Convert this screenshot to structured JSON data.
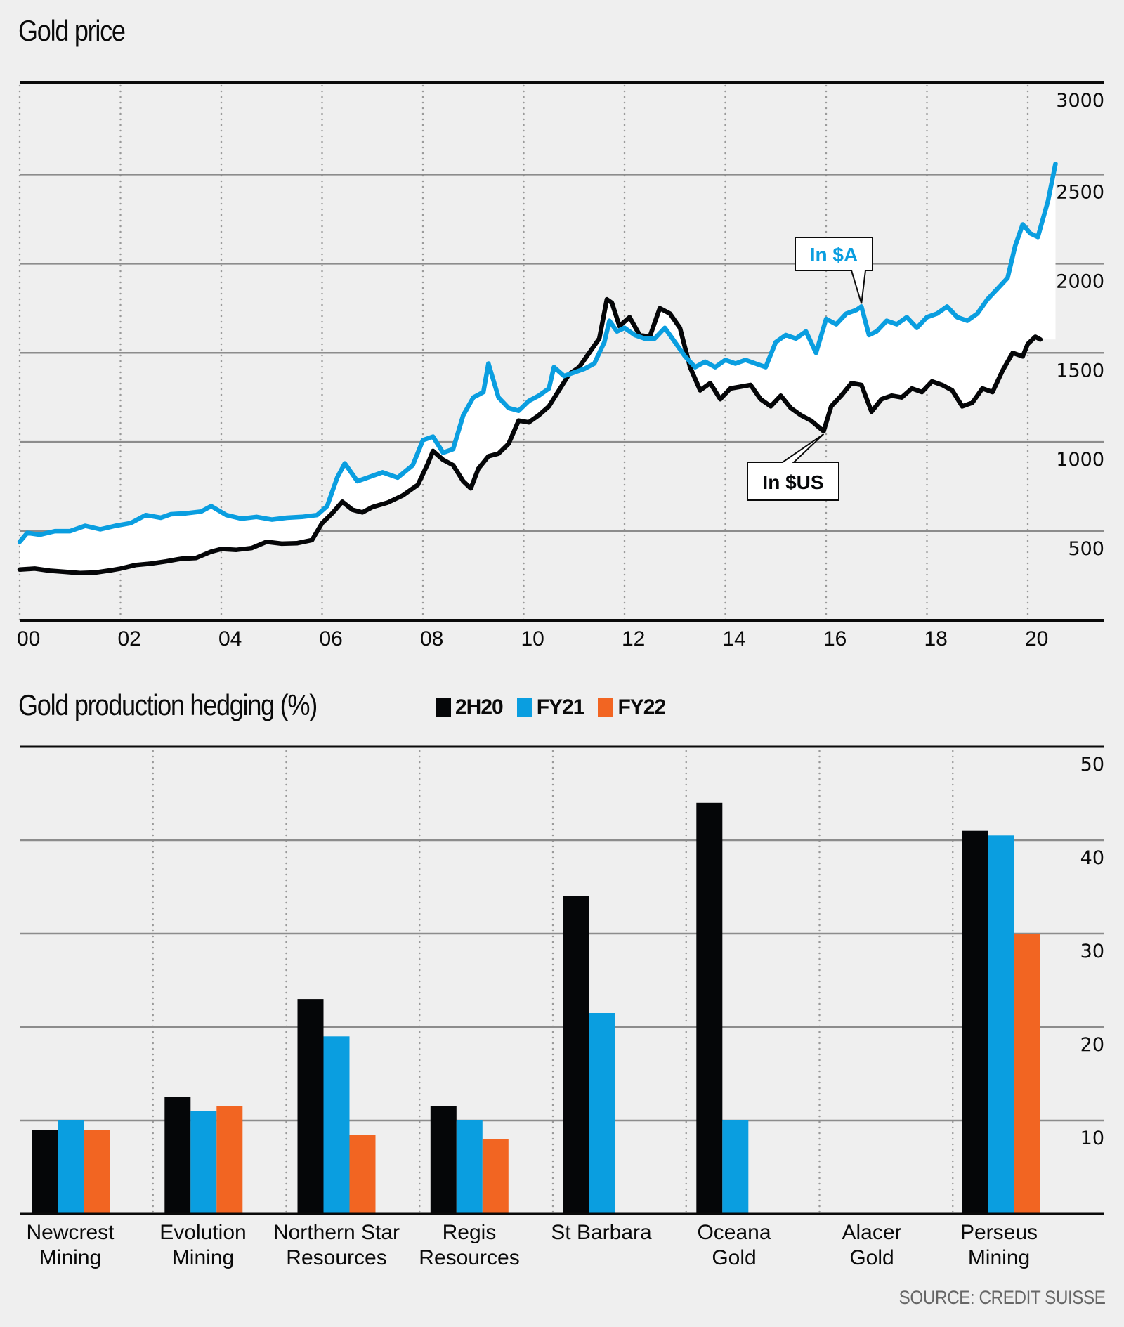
{
  "titles": {
    "gold_price": "Gold price",
    "hedging": "Gold production hedging (%)"
  },
  "colors": {
    "usd": "#050608",
    "aud": "#0a9ee0",
    "2H20": "#050608",
    "FY21": "#0a9ee0",
    "FY22": "#f26522",
    "background": "#efefef",
    "gridline": "#8c8c8c",
    "source": "#666666"
  },
  "legend": [
    {
      "key": "2H20",
      "label": "2H20"
    },
    {
      "key": "FY21",
      "label": "FY21"
    },
    {
      "key": "FY22",
      "label": "FY22"
    }
  ],
  "source": "SOURCE: CREDIT SUISSE",
  "chart_data": [
    {
      "type": "line",
      "title": "Gold price",
      "xlabel": "",
      "ylabel": "",
      "x_ticks": [
        "00",
        "02",
        "04",
        "06",
        "08",
        "10",
        "12",
        "14",
        "16",
        "18",
        "20"
      ],
      "xlim": [
        2000,
        2021
      ],
      "ylim": [
        0,
        3000
      ],
      "y_ticks": [
        500,
        1000,
        1500,
        2000,
        2500,
        3000
      ],
      "grid": {
        "horizontal": true,
        "vertical_dotted": true
      },
      "fill_between_series": true,
      "annotations": [
        {
          "text": "In $A",
          "series": "aud",
          "x": 2016.7
        },
        {
          "text": "In $US",
          "series": "usd",
          "x": 2015.95
        }
      ],
      "series": [
        {
          "name": "In $US",
          "key": "usd",
          "points": [
            [
              2000.0,
              285
            ],
            [
              2000.3,
              290
            ],
            [
              2000.6,
              278
            ],
            [
              2000.9,
              272
            ],
            [
              2001.2,
              265
            ],
            [
              2001.5,
              268
            ],
            [
              2001.8,
              280
            ],
            [
              2002.0,
              290
            ],
            [
              2002.3,
              310
            ],
            [
              2002.6,
              318
            ],
            [
              2002.9,
              330
            ],
            [
              2003.2,
              345
            ],
            [
              2003.5,
              350
            ],
            [
              2003.8,
              385
            ],
            [
              2004.0,
              400
            ],
            [
              2004.3,
              395
            ],
            [
              2004.6,
              405
            ],
            [
              2004.9,
              440
            ],
            [
              2005.2,
              430
            ],
            [
              2005.5,
              432
            ],
            [
              2005.8,
              450
            ],
            [
              2006.0,
              545
            ],
            [
              2006.2,
              600
            ],
            [
              2006.4,
              665
            ],
            [
              2006.6,
              620
            ],
            [
              2006.8,
              605
            ],
            [
              2007.0,
              635
            ],
            [
              2007.3,
              660
            ],
            [
              2007.6,
              700
            ],
            [
              2007.9,
              760
            ],
            [
              2008.1,
              880
            ],
            [
              2008.2,
              950
            ],
            [
              2008.4,
              900
            ],
            [
              2008.6,
              870
            ],
            [
              2008.8,
              780
            ],
            [
              2008.95,
              740
            ],
            [
              2009.1,
              850
            ],
            [
              2009.3,
              920
            ],
            [
              2009.5,
              935
            ],
            [
              2009.7,
              990
            ],
            [
              2009.9,
              1120
            ],
            [
              2010.1,
              1110
            ],
            [
              2010.3,
              1150
            ],
            [
              2010.5,
              1200
            ],
            [
              2010.7,
              1290
            ],
            [
              2010.9,
              1380
            ],
            [
              2011.1,
              1420
            ],
            [
              2011.3,
              1500
            ],
            [
              2011.5,
              1580
            ],
            [
              2011.65,
              1800
            ],
            [
              2011.75,
              1780
            ],
            [
              2011.9,
              1650
            ],
            [
              2012.1,
              1700
            ],
            [
              2012.3,
              1600
            ],
            [
              2012.5,
              1590
            ],
            [
              2012.7,
              1750
            ],
            [
              2012.9,
              1720
            ],
            [
              2013.1,
              1640
            ],
            [
              2013.3,
              1420
            ],
            [
              2013.5,
              1290
            ],
            [
              2013.7,
              1330
            ],
            [
              2013.9,
              1240
            ],
            [
              2014.1,
              1300
            ],
            [
              2014.3,
              1310
            ],
            [
              2014.5,
              1320
            ],
            [
              2014.7,
              1240
            ],
            [
              2014.9,
              1200
            ],
            [
              2015.1,
              1260
            ],
            [
              2015.3,
              1190
            ],
            [
              2015.5,
              1150
            ],
            [
              2015.7,
              1120
            ],
            [
              2015.95,
              1060
            ],
            [
              2016.1,
              1200
            ],
            [
              2016.3,
              1260
            ],
            [
              2016.5,
              1330
            ],
            [
              2016.7,
              1320
            ],
            [
              2016.9,
              1170
            ],
            [
              2017.1,
              1240
            ],
            [
              2017.3,
              1260
            ],
            [
              2017.5,
              1250
            ],
            [
              2017.7,
              1300
            ],
            [
              2017.9,
              1280
            ],
            [
              2018.1,
              1340
            ],
            [
              2018.3,
              1320
            ],
            [
              2018.5,
              1290
            ],
            [
              2018.7,
              1200
            ],
            [
              2018.9,
              1220
            ],
            [
              2019.1,
              1300
            ],
            [
              2019.3,
              1280
            ],
            [
              2019.5,
              1400
            ],
            [
              2019.7,
              1500
            ],
            [
              2019.9,
              1480
            ],
            [
              2020.0,
              1550
            ],
            [
              2020.15,
              1590
            ],
            [
              2020.25,
              1575
            ]
          ]
        },
        {
          "name": "In $A",
          "key": "aud",
          "points": [
            [
              2000.0,
              440
            ],
            [
              2000.15,
              490
            ],
            [
              2000.4,
              480
            ],
            [
              2000.7,
              500
            ],
            [
              2001.0,
              500
            ],
            [
              2001.3,
              530
            ],
            [
              2001.6,
              510
            ],
            [
              2001.9,
              530
            ],
            [
              2002.2,
              545
            ],
            [
              2002.5,
              590
            ],
            [
              2002.8,
              575
            ],
            [
              2003.0,
              595
            ],
            [
              2003.3,
              600
            ],
            [
              2003.6,
              610
            ],
            [
              2003.8,
              640
            ],
            [
              2004.1,
              590
            ],
            [
              2004.4,
              570
            ],
            [
              2004.7,
              580
            ],
            [
              2005.0,
              565
            ],
            [
              2005.3,
              575
            ],
            [
              2005.6,
              580
            ],
            [
              2005.9,
              590
            ],
            [
              2006.1,
              640
            ],
            [
              2006.3,
              800
            ],
            [
              2006.45,
              880
            ],
            [
              2006.7,
              780
            ],
            [
              2006.9,
              800
            ],
            [
              2007.2,
              830
            ],
            [
              2007.5,
              800
            ],
            [
              2007.8,
              870
            ],
            [
              2008.0,
              1010
            ],
            [
              2008.2,
              1030
            ],
            [
              2008.4,
              940
            ],
            [
              2008.6,
              960
            ],
            [
              2008.8,
              1150
            ],
            [
              2009.0,
              1250
            ],
            [
              2009.2,
              1280
            ],
            [
              2009.3,
              1440
            ],
            [
              2009.5,
              1250
            ],
            [
              2009.7,
              1190
            ],
            [
              2009.9,
              1175
            ],
            [
              2010.1,
              1230
            ],
            [
              2010.3,
              1260
            ],
            [
              2010.5,
              1300
            ],
            [
              2010.6,
              1420
            ],
            [
              2010.8,
              1370
            ],
            [
              2011.0,
              1390
            ],
            [
              2011.2,
              1410
            ],
            [
              2011.4,
              1440
            ],
            [
              2011.6,
              1560
            ],
            [
              2011.7,
              1680
            ],
            [
              2011.85,
              1620
            ],
            [
              2012.0,
              1640
            ],
            [
              2012.2,
              1600
            ],
            [
              2012.4,
              1580
            ],
            [
              2012.6,
              1580
            ],
            [
              2012.8,
              1640
            ],
            [
              2013.0,
              1560
            ],
            [
              2013.2,
              1480
            ],
            [
              2013.4,
              1420
            ],
            [
              2013.6,
              1450
            ],
            [
              2013.8,
              1420
            ],
            [
              2014.0,
              1460
            ],
            [
              2014.2,
              1440
            ],
            [
              2014.4,
              1460
            ],
            [
              2014.6,
              1440
            ],
            [
              2014.8,
              1420
            ],
            [
              2015.0,
              1560
            ],
            [
              2015.2,
              1600
            ],
            [
              2015.4,
              1580
            ],
            [
              2015.6,
              1620
            ],
            [
              2015.8,
              1500
            ],
            [
              2016.0,
              1690
            ],
            [
              2016.2,
              1660
            ],
            [
              2016.4,
              1720
            ],
            [
              2016.6,
              1740
            ],
            [
              2016.7,
              1760
            ],
            [
              2016.85,
              1600
            ],
            [
              2017.0,
              1620
            ],
            [
              2017.2,
              1680
            ],
            [
              2017.4,
              1660
            ],
            [
              2017.6,
              1700
            ],
            [
              2017.8,
              1640
            ],
            [
              2018.0,
              1700
            ],
            [
              2018.2,
              1720
            ],
            [
              2018.4,
              1760
            ],
            [
              2018.6,
              1700
            ],
            [
              2018.8,
              1680
            ],
            [
              2019.0,
              1720
            ],
            [
              2019.2,
              1800
            ],
            [
              2019.4,
              1860
            ],
            [
              2019.6,
              1920
            ],
            [
              2019.75,
              2100
            ],
            [
              2019.9,
              2220
            ],
            [
              2020.05,
              2170
            ],
            [
              2020.2,
              2150
            ],
            [
              2020.4,
              2350
            ],
            [
              2020.55,
              2560
            ]
          ]
        }
      ]
    },
    {
      "type": "bar",
      "title": "Gold production hedging (%)",
      "xlabel": "",
      "ylabel": "",
      "ylim": [
        0,
        50
      ],
      "y_ticks": [
        10,
        20,
        30,
        40,
        50
      ],
      "grid": {
        "horizontal": true,
        "vertical_dotted": true
      },
      "legend_position": "top",
      "categories": [
        [
          "Newcrest",
          "Mining"
        ],
        [
          "Evolution",
          "Mining"
        ],
        [
          "Northern Star",
          "Resources"
        ],
        [
          "Regis",
          "Resources"
        ],
        [
          "St Barbara"
        ],
        [
          "Oceana",
          "Gold"
        ],
        [
          "Alacer",
          "Gold"
        ],
        [
          "Perseus",
          "Mining"
        ]
      ],
      "series": [
        {
          "name": "2H20",
          "key": "2H20",
          "values": [
            9,
            12.5,
            23,
            11.5,
            34,
            44,
            null,
            41
          ]
        },
        {
          "name": "FY21",
          "key": "FY21",
          "values": [
            10,
            11,
            19,
            10,
            21.5,
            10,
            null,
            40.5
          ]
        },
        {
          "name": "FY22",
          "key": "FY22",
          "values": [
            9,
            11.5,
            8.5,
            8,
            null,
            null,
            null,
            30
          ]
        }
      ]
    }
  ]
}
